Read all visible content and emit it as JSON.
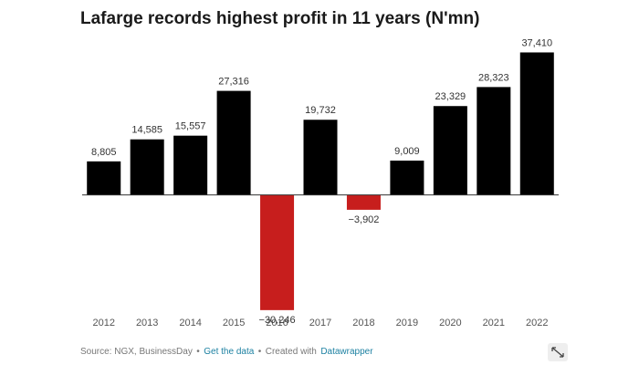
{
  "chart_data": {
    "type": "bar",
    "title": "Lafarge records highest profit in 11 years (N'mn)",
    "categories": [
      "2012",
      "2013",
      "2014",
      "2015",
      "2016",
      "2017",
      "2018",
      "2019",
      "2020",
      "2021",
      "2022"
    ],
    "values": [
      8805,
      14585,
      15557,
      27316,
      -30246,
      19732,
      -3902,
      9009,
      23329,
      28323,
      37410
    ],
    "value_labels": [
      "8,805",
      "14,585",
      "15,557",
      "27,316",
      "−30,246",
      "19,732",
      "−3,902",
      "9,009",
      "23,329",
      "28,323",
      "37,410"
    ],
    "color": "#000000",
    "negative_color": "#c71e1d",
    "ylim": [
      -31000,
      38000
    ],
    "footer": {
      "source": "Source: NGX, BusinessDay",
      "separator": "•",
      "link": "Get the data",
      "credit": "Created with",
      "tool": "Datawrapper"
    }
  }
}
